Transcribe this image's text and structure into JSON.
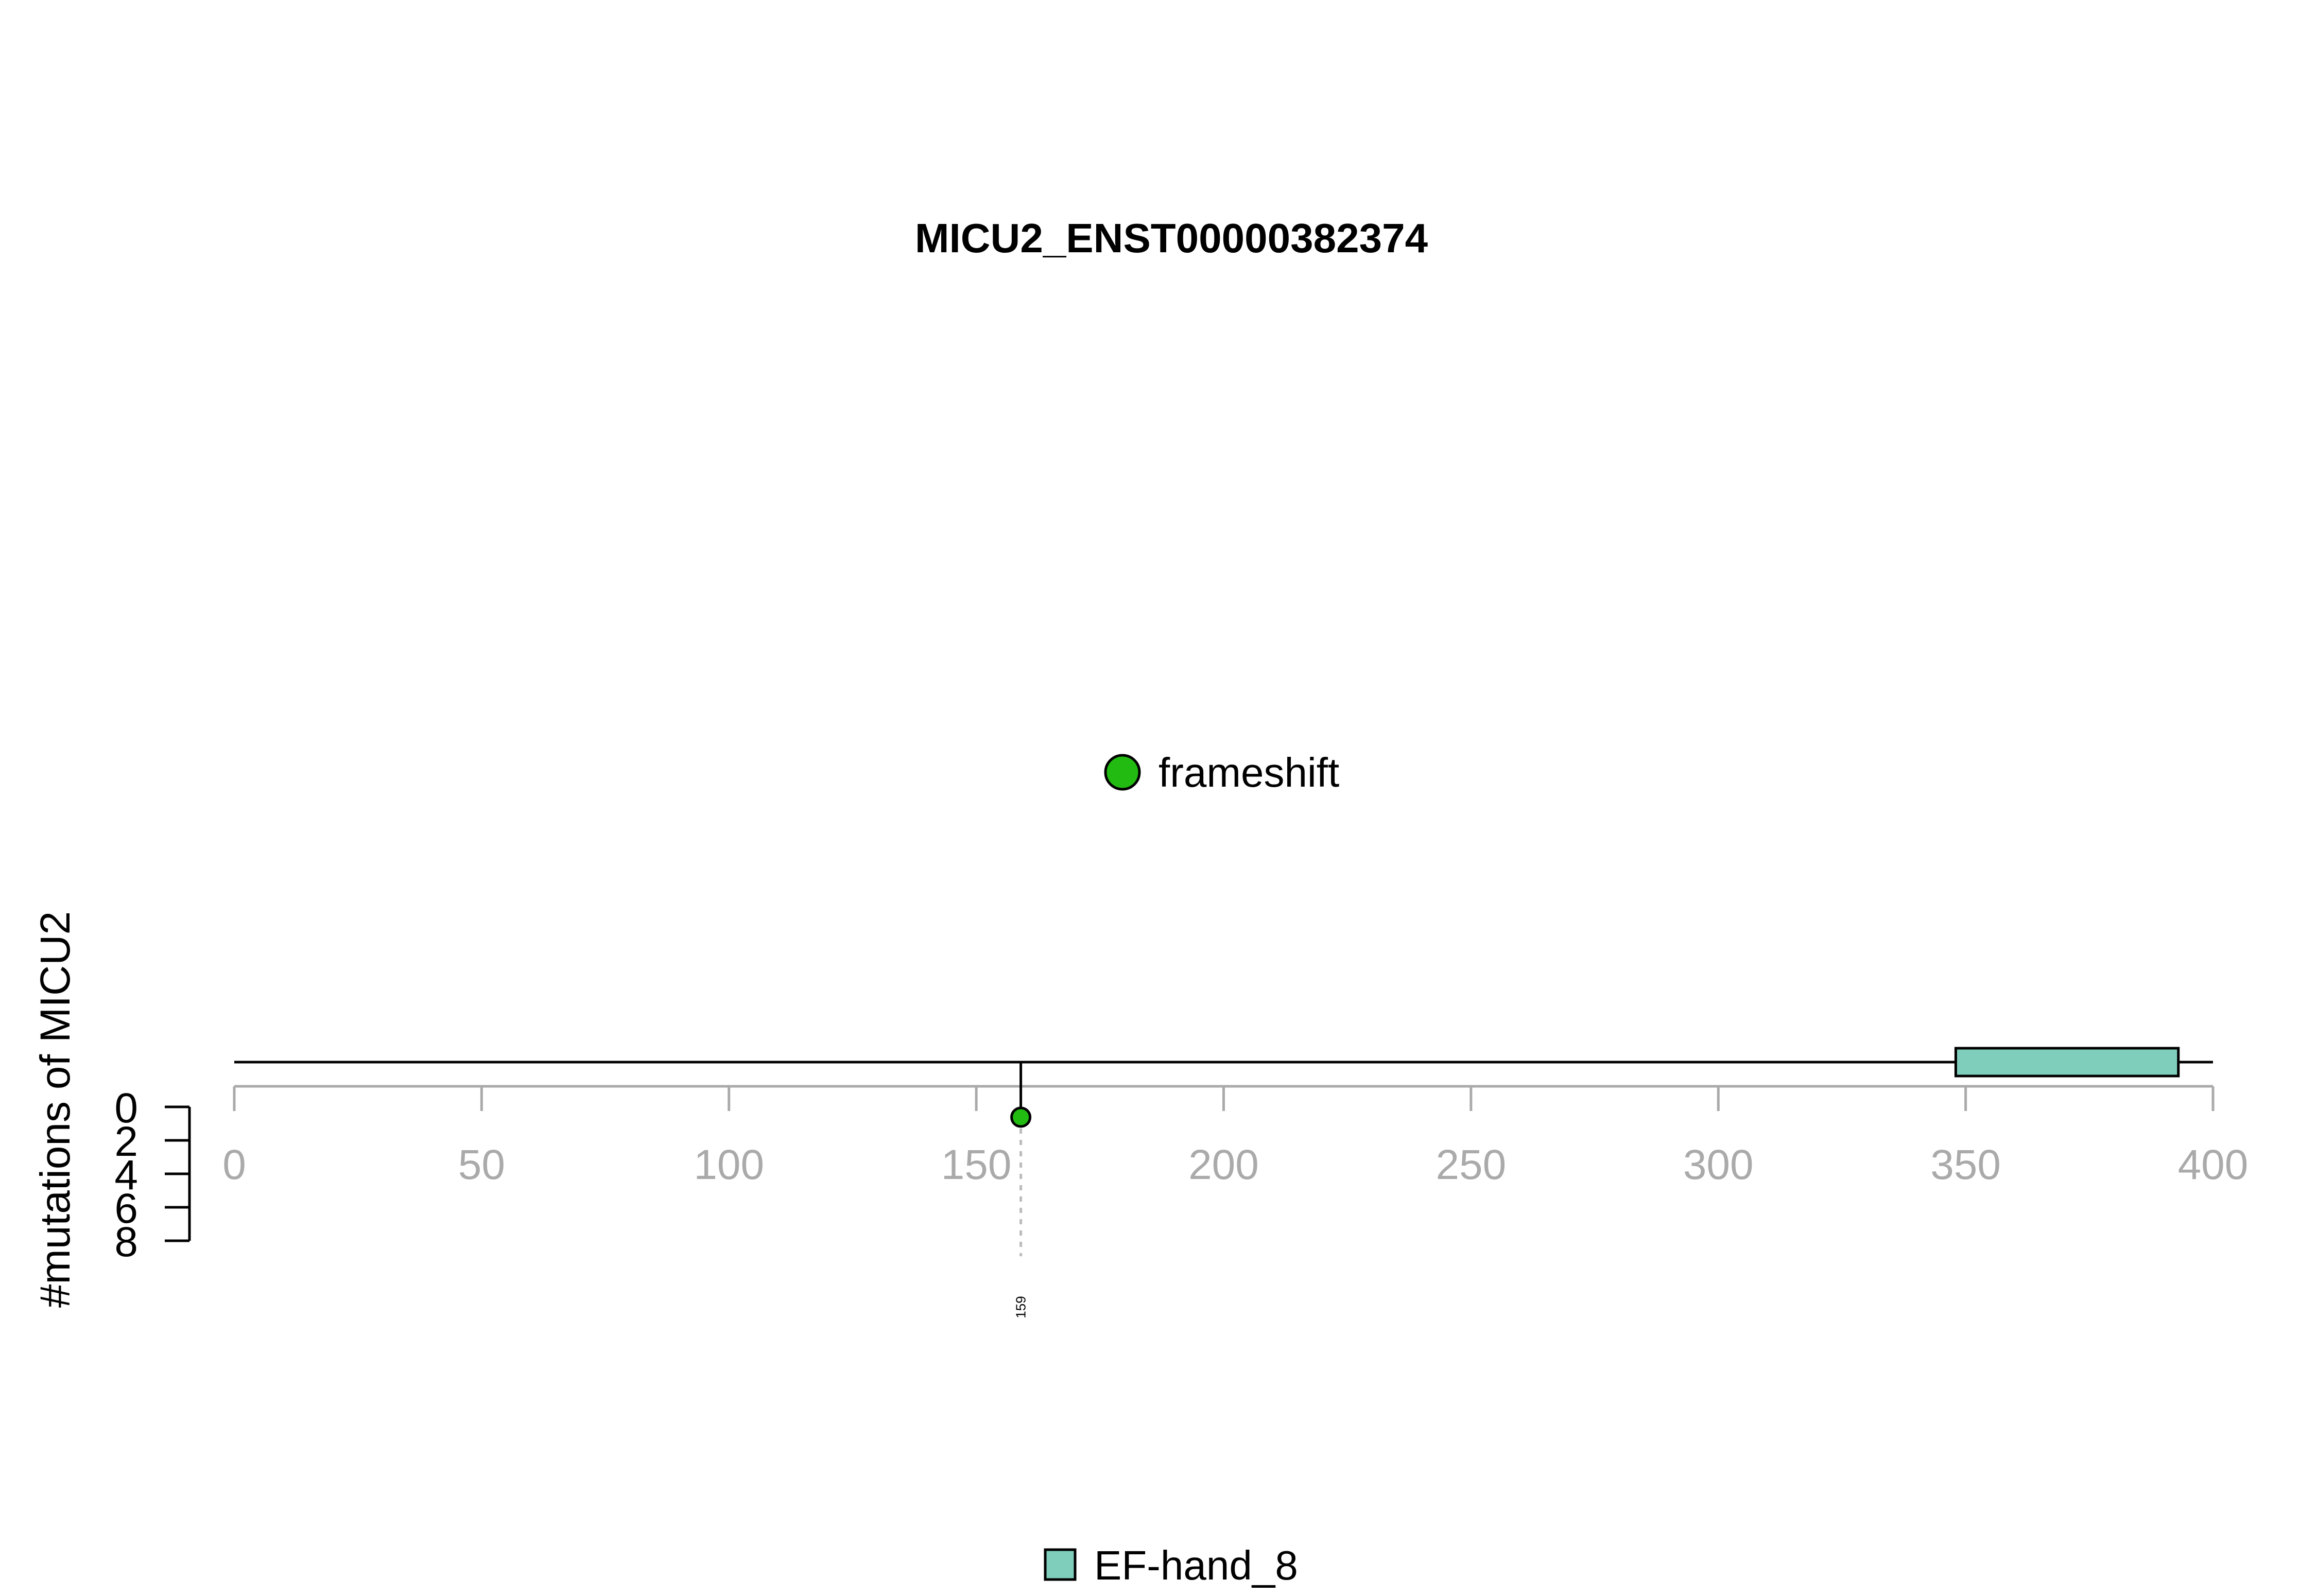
{
  "chart_data": {
    "type": "lollipop",
    "title": "MICU2_ENST00000382374",
    "ylabel": "#mutations of MICU2",
    "xlim": [
      0,
      400
    ],
    "x_ticks": [
      0,
      50,
      100,
      150,
      200,
      250,
      300,
      350,
      400
    ],
    "y_ticks": [
      0,
      2,
      4,
      6,
      8
    ],
    "ylim": [
      0,
      8
    ],
    "protein_length": 400,
    "mutation_types": [
      {
        "name": "frameshift",
        "color": "#22bb11"
      }
    ],
    "mutations": [
      {
        "position": 159,
        "count": 1,
        "type": "frameshift",
        "label": "159"
      }
    ],
    "domains": [
      {
        "name": "EF-hand_8",
        "start": 348,
        "end": 393,
        "color": "#7fcdbb"
      }
    ],
    "grid": false,
    "legend_placement": [
      "center (mutation types)",
      "bottom (domains)"
    ]
  }
}
